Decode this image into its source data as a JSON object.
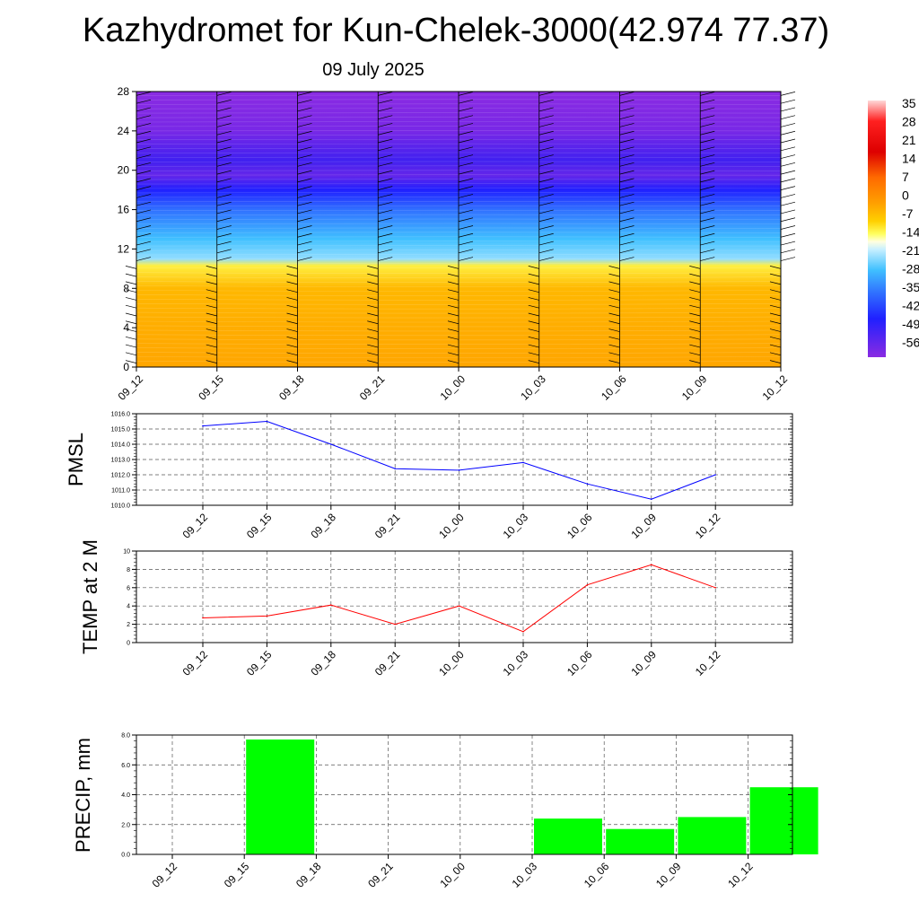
{
  "title": "Kazhydromet for Kun-Chelek-3000(42.974 77.37)",
  "subtitle": "09 July 2025",
  "chart_data": [
    {
      "type": "heatmap",
      "name": "upper-air cross-section",
      "x_categories": [
        "09_12",
        "09_15",
        "09_18",
        "09_21",
        "10_00",
        "10_03",
        "10_06",
        "10_09",
        "10_12"
      ],
      "y_ticks": [
        "0",
        "4",
        "8",
        "12",
        "16",
        "20",
        "24",
        "28"
      ],
      "ylim": [
        0,
        28
      ],
      "colorbar_labels": [
        "35",
        "28",
        "21",
        "14",
        "7",
        "0",
        "-7",
        "-14",
        "-21",
        "-28",
        "-35",
        "-42",
        "-49",
        "-56"
      ],
      "color_profile": [
        {
          "level": 0,
          "value": 5
        },
        {
          "level": 4,
          "value": 3
        },
        {
          "level": 8,
          "value": 1
        },
        {
          "level": 10.3,
          "value": -4
        },
        {
          "level": 11,
          "value": -18
        },
        {
          "level": 13,
          "value": -24
        },
        {
          "level": 16,
          "value": -34
        },
        {
          "level": 18,
          "value": -46
        },
        {
          "level": 19.5,
          "value": -56
        },
        {
          "level": 21,
          "value": -52
        },
        {
          "level": 24,
          "value": -58
        },
        {
          "level": 28,
          "value": -60
        }
      ],
      "wind_barbs": "shown at each time"
    },
    {
      "type": "line",
      "ylabel": "PMSL",
      "x_categories": [
        "09_12",
        "09_15",
        "09_18",
        "09_21",
        "10_00",
        "10_03",
        "10_06",
        "10_09",
        "10_12"
      ],
      "series": [
        {
          "color": "#0000ff",
          "values": [
            1015.2,
            1015.5,
            1014.0,
            1012.4,
            1012.3,
            1012.8,
            1011.4,
            1010.4,
            1012.0
          ]
        }
      ],
      "ylim": [
        1010.0,
        1016.0
      ],
      "y_ticks": [
        "1010.0",
        "1011.0",
        "1012.0",
        "1013.0",
        "1014.0",
        "1015.0",
        "1016.0"
      ],
      "grid": true
    },
    {
      "type": "line",
      "ylabel": "TEMP at 2 M",
      "x_categories": [
        "09_12",
        "09_15",
        "09_18",
        "09_21",
        "10_00",
        "10_03",
        "10_06",
        "10_09",
        "10_12"
      ],
      "series": [
        {
          "color": "#ff0000",
          "values": [
            2.7,
            2.9,
            4.1,
            2.0,
            4.0,
            1.2,
            6.3,
            8.5,
            6.0
          ]
        }
      ],
      "ylim": [
        0,
        10
      ],
      "y_ticks": [
        "0",
        "2",
        "4",
        "6",
        "8",
        "10"
      ],
      "grid": true
    },
    {
      "type": "bar",
      "ylabel": "PRECIP, mm",
      "categories": [
        "09_12",
        "09_15",
        "09_18",
        "09_21",
        "10_00",
        "10_03",
        "10_06",
        "10_09",
        "10_12"
      ],
      "values": [
        0,
        7.7,
        0,
        0,
        0,
        2.4,
        1.7,
        2.5,
        4.5
      ],
      "ylim": [
        0,
        8.0
      ],
      "y_ticks": [
        "0.0",
        "2.0",
        "4.0",
        "6.0",
        "8.0"
      ],
      "bar_color": "#00ff00",
      "grid": true
    }
  ]
}
